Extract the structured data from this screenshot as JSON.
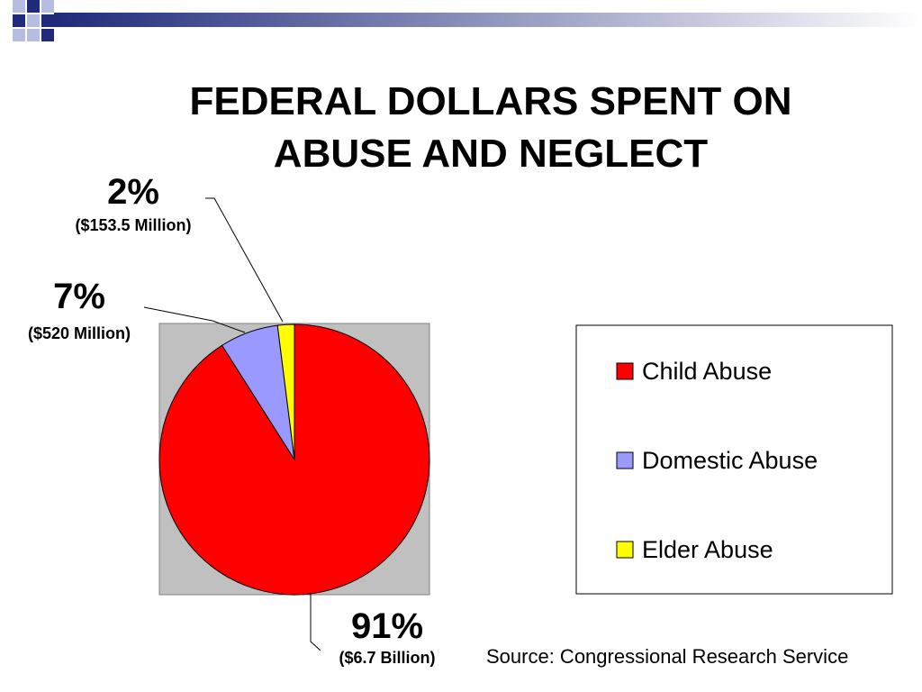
{
  "slide": {
    "title_lines": [
      "FEDERAL DOLLARS SPENT ON",
      "ABUSE AND NEGLECT"
    ],
    "source": "Source: Congressional Research Service"
  },
  "colors": {
    "decor_navy": "#1f2a7a",
    "decor_light": "#b7bde0",
    "plot_bg": "#c0c0c0"
  },
  "chart_data": {
    "type": "pie",
    "title": "FEDERAL DOLLARS SPENT ON ABUSE AND NEGLECT",
    "legend_position": "right",
    "slices": [
      {
        "label": "Child Abuse",
        "value": 91,
        "percent_label": "91%",
        "amount_label": "($6.7 Billion)",
        "color": "#ff0000"
      },
      {
        "label": "Domestic Abuse",
        "value": 7,
        "percent_label": "7%",
        "amount_label": "($520 Million)",
        "color": "#9999ff"
      },
      {
        "label": "Elder Abuse",
        "value": 2,
        "percent_label": "2%",
        "amount_label": "($153.5 Million)",
        "color": "#ffff00"
      }
    ]
  }
}
